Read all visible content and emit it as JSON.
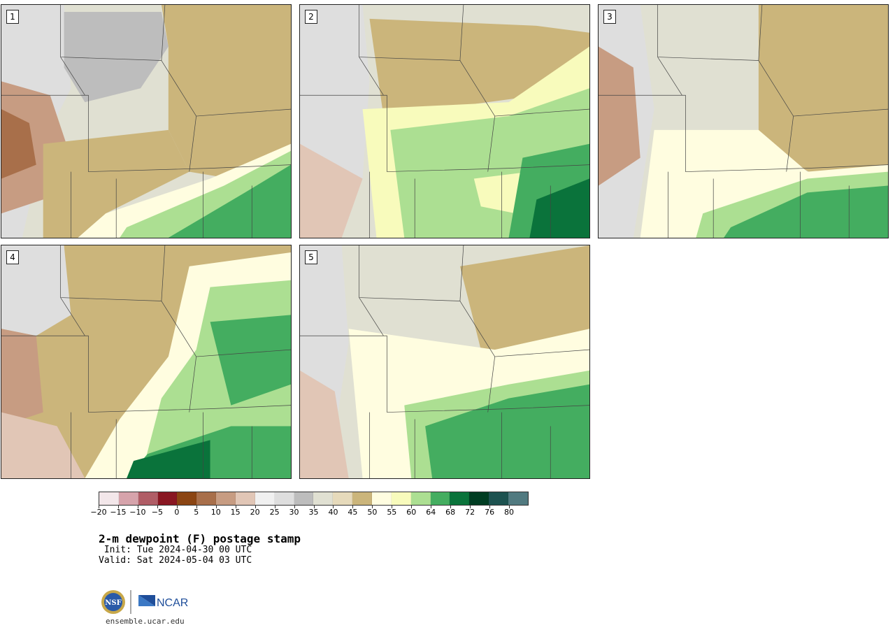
{
  "panels": [
    {
      "label": "1",
      "theme": "dry"
    },
    {
      "label": "2",
      "theme": "moist-mid"
    },
    {
      "label": "3",
      "theme": "dry-south"
    },
    {
      "label": "4",
      "theme": "moist-east"
    },
    {
      "label": "5",
      "theme": "moist-south"
    }
  ],
  "colorbar": {
    "colors": [
      "#f3e7ea",
      "#d6a3ab",
      "#b05d66",
      "#891722",
      "#8b4513",
      "#a86f4a",
      "#c79c82",
      "#e1c6b6",
      "#f0f0f0",
      "#dedede",
      "#bdbdbd",
      "#e0e0d2",
      "#e6dabb",
      "#cbb57b",
      "#fffde0",
      "#f8fbbc",
      "#acdf92",
      "#44ad60",
      "#0a733b",
      "#003d22",
      "#1d5250",
      "#517a80"
    ],
    "ticks": [
      "−20",
      "−15",
      "−10",
      "−5",
      "0",
      "5",
      "10",
      "15",
      "20",
      "25",
      "30",
      "35",
      "40",
      "45",
      "50",
      "55",
      "60",
      "64",
      "68",
      "72",
      "76",
      "80"
    ]
  },
  "title": "2-m dewpoint (F) postage stamp",
  "init": " Init: Tue 2024-04-30 00 UTC",
  "valid": "Valid: Sat 2024-05-04 03 UTC",
  "logo": {
    "nsf": "NSF",
    "ncar": "NCAR"
  },
  "site": "ensemble.ucar.edu"
}
